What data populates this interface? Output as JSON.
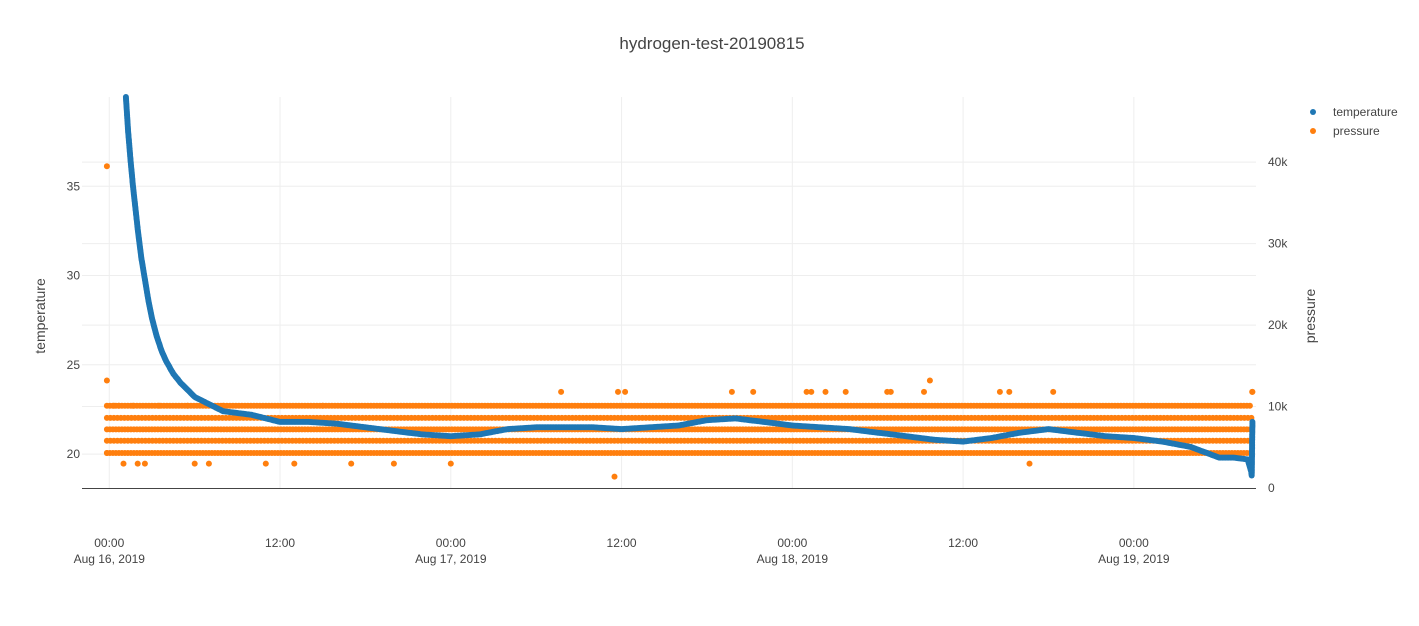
{
  "chart_data": {
    "type": "scatter",
    "title": "hydrogen-test-20190815",
    "y_left_label": "temperature",
    "y_right_label": "pressure",
    "x_range": [
      "2019-08-15T22:05",
      "2019-08-19T08:35"
    ],
    "y_left_range": [
      18.1,
      40
    ],
    "y_right_range": [
      0,
      48000
    ],
    "x_ticks": [
      {
        "time": "2019-08-16T00:00",
        "label": "00:00",
        "sub": "Aug 16, 2019"
      },
      {
        "time": "2019-08-16T12:00",
        "label": "12:00",
        "sub": ""
      },
      {
        "time": "2019-08-17T00:00",
        "label": "00:00",
        "sub": "Aug 17, 2019"
      },
      {
        "time": "2019-08-17T12:00",
        "label": "12:00",
        "sub": ""
      },
      {
        "time": "2019-08-18T00:00",
        "label": "00:00",
        "sub": "Aug 18, 2019"
      },
      {
        "time": "2019-08-18T12:00",
        "label": "12:00",
        "sub": ""
      },
      {
        "time": "2019-08-19T00:00",
        "label": "00:00",
        "sub": "Aug 19, 2019"
      }
    ],
    "y_left_ticks": [
      20,
      25,
      30,
      35
    ],
    "y_right_ticks": [
      {
        "value": 0,
        "label": "0"
      },
      {
        "value": 10000,
        "label": "10k"
      },
      {
        "value": 20000,
        "label": "20k"
      },
      {
        "value": 30000,
        "label": "30k"
      },
      {
        "value": 40000,
        "label": "40k"
      }
    ],
    "grid": true,
    "legend": {
      "placement": "top-right"
    },
    "series": [
      {
        "name": "temperature",
        "axis": "left",
        "color": "#1f77b4",
        "points": [
          [
            "2019-08-16T01:10",
            40.0
          ],
          [
            "2019-08-16T01:20",
            38.0
          ],
          [
            "2019-08-16T01:30",
            36.4
          ],
          [
            "2019-08-16T01:40",
            35.0
          ],
          [
            "2019-08-16T01:50",
            33.8
          ],
          [
            "2019-08-16T02:00",
            32.6
          ],
          [
            "2019-08-16T02:15",
            31.0
          ],
          [
            "2019-08-16T02:30",
            29.8
          ],
          [
            "2019-08-16T02:45",
            28.6
          ],
          [
            "2019-08-16T03:00",
            27.6
          ],
          [
            "2019-08-16T03:20",
            26.6
          ],
          [
            "2019-08-16T03:40",
            25.8
          ],
          [
            "2019-08-16T04:00",
            25.2
          ],
          [
            "2019-08-16T04:30",
            24.5
          ],
          [
            "2019-08-16T05:00",
            24.0
          ],
          [
            "2019-08-16T05:30",
            23.6
          ],
          [
            "2019-08-16T06:00",
            23.2
          ],
          [
            "2019-08-16T06:30",
            23.0
          ],
          [
            "2019-08-16T07:00",
            22.8
          ],
          [
            "2019-08-16T07:30",
            22.6
          ],
          [
            "2019-08-16T08:00",
            22.4
          ],
          [
            "2019-08-16T09:00",
            22.3
          ],
          [
            "2019-08-16T10:00",
            22.2
          ],
          [
            "2019-08-16T11:00",
            22.0
          ],
          [
            "2019-08-16T12:00",
            21.8
          ],
          [
            "2019-08-16T14:00",
            21.8
          ],
          [
            "2019-08-16T16:00",
            21.7
          ],
          [
            "2019-08-16T18:00",
            21.5
          ],
          [
            "2019-08-16T20:00",
            21.3
          ],
          [
            "2019-08-16T22:00",
            21.1
          ],
          [
            "2019-08-17T00:00",
            21.0
          ],
          [
            "2019-08-17T02:00",
            21.1
          ],
          [
            "2019-08-17T04:00",
            21.4
          ],
          [
            "2019-08-17T06:00",
            21.5
          ],
          [
            "2019-08-17T08:00",
            21.5
          ],
          [
            "2019-08-17T10:00",
            21.5
          ],
          [
            "2019-08-17T12:00",
            21.4
          ],
          [
            "2019-08-17T14:00",
            21.5
          ],
          [
            "2019-08-17T16:00",
            21.6
          ],
          [
            "2019-08-17T18:00",
            21.9
          ],
          [
            "2019-08-17T20:00",
            22.0
          ],
          [
            "2019-08-17T22:00",
            21.8
          ],
          [
            "2019-08-18T00:00",
            21.6
          ],
          [
            "2019-08-18T02:00",
            21.5
          ],
          [
            "2019-08-18T04:00",
            21.4
          ],
          [
            "2019-08-18T06:00",
            21.2
          ],
          [
            "2019-08-18T08:00",
            21.0
          ],
          [
            "2019-08-18T10:00",
            20.8
          ],
          [
            "2019-08-18T12:00",
            20.7
          ],
          [
            "2019-08-18T14:00",
            20.9
          ],
          [
            "2019-08-18T16:00",
            21.2
          ],
          [
            "2019-08-18T18:00",
            21.4
          ],
          [
            "2019-08-18T20:00",
            21.2
          ],
          [
            "2019-08-18T22:00",
            21.0
          ],
          [
            "2019-08-19T00:00",
            20.9
          ],
          [
            "2019-08-19T02:00",
            20.7
          ],
          [
            "2019-08-19T04:00",
            20.4
          ],
          [
            "2019-08-19T05:00",
            20.1
          ],
          [
            "2019-08-19T06:00",
            19.8
          ],
          [
            "2019-08-19T07:00",
            19.8
          ],
          [
            "2019-08-19T08:00",
            19.7
          ],
          [
            "2019-08-19T08:15",
            19.0
          ],
          [
            "2019-08-19T08:17",
            18.8
          ],
          [
            "2019-08-19T08:19",
            21.0
          ],
          [
            "2019-08-19T08:20",
            21.8
          ]
        ]
      },
      {
        "name": "pressure",
        "axis": "right",
        "color": "#ff7f0e",
        "levels": [
          4300,
          5800,
          7200,
          8600,
          10100
        ],
        "level_start": "2019-08-15T23:50",
        "level_end": "2019-08-19T08:20",
        "points": [
          [
            "2019-08-15T23:50",
            39500
          ],
          [
            "2019-08-15T23:50",
            13200
          ],
          [
            "2019-08-15T23:50",
            4300
          ],
          [
            "2019-08-16T00:20",
            10100
          ],
          [
            "2019-08-16T00:40",
            10100
          ],
          [
            "2019-08-16T01:00",
            3000
          ],
          [
            "2019-08-16T01:40",
            10100
          ],
          [
            "2019-08-16T02:00",
            3000
          ],
          [
            "2019-08-16T02:30",
            3000
          ],
          [
            "2019-08-16T03:30",
            10100
          ],
          [
            "2019-08-16T05:30",
            10100
          ],
          [
            "2019-08-16T06:00",
            3000
          ],
          [
            "2019-08-16T07:00",
            3000
          ],
          [
            "2019-08-16T08:00",
            10100
          ],
          [
            "2019-08-16T11:00",
            3000
          ],
          [
            "2019-08-16T13:00",
            3000
          ],
          [
            "2019-08-16T15:00",
            10100
          ],
          [
            "2019-08-16T17:00",
            3000
          ],
          [
            "2019-08-16T20:00",
            3000
          ],
          [
            "2019-08-17T00:00",
            3000
          ],
          [
            "2019-08-17T07:45",
            11800
          ],
          [
            "2019-08-17T11:30",
            1400
          ],
          [
            "2019-08-17T11:45",
            11800
          ],
          [
            "2019-08-17T12:15",
            11800
          ],
          [
            "2019-08-17T19:45",
            11800
          ],
          [
            "2019-08-17T21:15",
            11800
          ],
          [
            "2019-08-18T01:00",
            11800
          ],
          [
            "2019-08-18T01:20",
            11800
          ],
          [
            "2019-08-18T02:20",
            11800
          ],
          [
            "2019-08-18T03:45",
            11800
          ],
          [
            "2019-08-18T06:40",
            11800
          ],
          [
            "2019-08-18T06:55",
            11800
          ],
          [
            "2019-08-18T09:15",
            11800
          ],
          [
            "2019-08-18T09:40",
            13200
          ],
          [
            "2019-08-18T14:35",
            11800
          ],
          [
            "2019-08-18T15:15",
            11800
          ],
          [
            "2019-08-18T16:40",
            3000
          ],
          [
            "2019-08-18T18:20",
            11800
          ],
          [
            "2019-08-19T08:19",
            11800
          ],
          [
            "2019-08-19T08:20",
            11800
          ]
        ]
      }
    ]
  }
}
